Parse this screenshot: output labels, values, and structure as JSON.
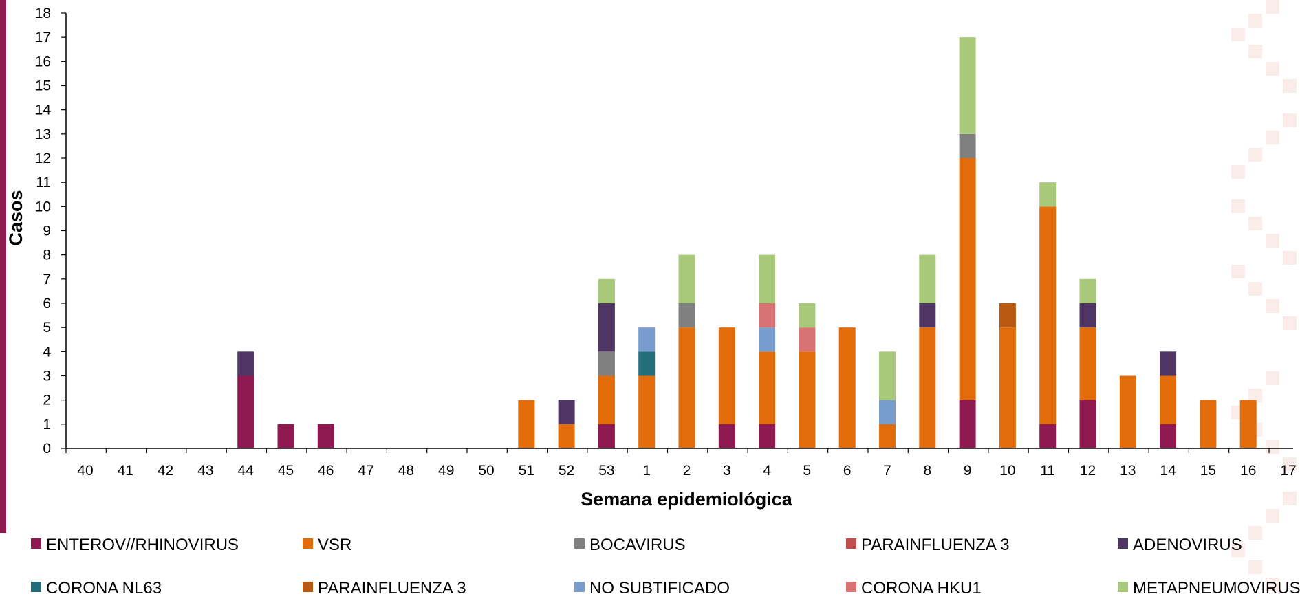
{
  "chart_data": {
    "type": "bar",
    "stacked": true,
    "xlabel": "Semana epidemiológica",
    "ylabel": "Casos",
    "ylim": [
      0,
      18
    ],
    "yticks": [
      0,
      1,
      2,
      3,
      4,
      5,
      6,
      7,
      8,
      9,
      10,
      11,
      12,
      13,
      14,
      15,
      16,
      17,
      18
    ],
    "grid": false,
    "legend_position": "bottom",
    "categories": [
      "40",
      "41",
      "42",
      "43",
      "44",
      "45",
      "46",
      "47",
      "48",
      "49",
      "50",
      "51",
      "52",
      "53",
      "1",
      "2",
      "3",
      "4",
      "5",
      "6",
      "7",
      "8",
      "9",
      "10",
      "11",
      "12",
      "13",
      "14",
      "15",
      "16",
      "17"
    ],
    "series": [
      {
        "name": "ENTEROV//RHINOVIRUS",
        "color": "#8f1a52",
        "values": [
          0,
          0,
          0,
          0,
          3,
          1,
          1,
          0,
          0,
          0,
          0,
          0,
          0,
          1,
          0,
          0,
          1,
          1,
          0,
          0,
          0,
          0,
          2,
          0,
          1,
          2,
          0,
          1,
          0,
          0,
          0
        ]
      },
      {
        "name": "VSR",
        "color": "#e36c0a",
        "values": [
          0,
          0,
          0,
          0,
          0,
          0,
          0,
          0,
          0,
          0,
          0,
          2,
          1,
          2,
          3,
          5,
          4,
          3,
          4,
          5,
          1,
          5,
          10,
          5,
          9,
          3,
          3,
          2,
          2,
          2,
          0
        ]
      },
      {
        "name": "BOCAVIRUS",
        "color": "#808080",
        "values": [
          0,
          0,
          0,
          0,
          0,
          0,
          0,
          0,
          0,
          0,
          0,
          0,
          0,
          1,
          0,
          1,
          0,
          0,
          0,
          0,
          0,
          0,
          1,
          0,
          0,
          0,
          0,
          0,
          0,
          0,
          0
        ]
      },
      {
        "name": "PARAINFLUENZA 3",
        "color": "#c0504d",
        "values": [
          0,
          0,
          0,
          0,
          0,
          0,
          0,
          0,
          0,
          0,
          0,
          0,
          0,
          0,
          0,
          0,
          0,
          0,
          0,
          0,
          0,
          0,
          0,
          0,
          0,
          0,
          0,
          0,
          0,
          0,
          0
        ]
      },
      {
        "name": "ADENOVIRUS",
        "color": "#4f3563",
        "values": [
          0,
          0,
          0,
          0,
          1,
          0,
          0,
          0,
          0,
          0,
          0,
          0,
          1,
          2,
          0,
          0,
          0,
          0,
          0,
          0,
          0,
          1,
          0,
          0,
          0,
          1,
          0,
          1,
          0,
          0,
          0
        ]
      },
      {
        "name": "CORONA NL63",
        "color": "#246d7a",
        "values": [
          0,
          0,
          0,
          0,
          0,
          0,
          0,
          0,
          0,
          0,
          0,
          0,
          0,
          0,
          1,
          0,
          0,
          0,
          0,
          0,
          0,
          0,
          0,
          0,
          0,
          0,
          0,
          0,
          0,
          0,
          0
        ]
      },
      {
        "name": "PARAINFLUENZA 3",
        "color": "#b95a12",
        "values": [
          0,
          0,
          0,
          0,
          0,
          0,
          0,
          0,
          0,
          0,
          0,
          0,
          0,
          0,
          0,
          0,
          0,
          0,
          0,
          0,
          0,
          0,
          0,
          1,
          0,
          0,
          0,
          0,
          0,
          0,
          0
        ]
      },
      {
        "name": "NO SUBTIFICADO",
        "color": "#779ccd",
        "values": [
          0,
          0,
          0,
          0,
          0,
          0,
          0,
          0,
          0,
          0,
          0,
          0,
          0,
          0,
          1,
          0,
          0,
          1,
          0,
          0,
          1,
          0,
          0,
          0,
          0,
          0,
          0,
          0,
          0,
          0,
          0
        ]
      },
      {
        "name": "CORONA HKU1",
        "color": "#d97373",
        "values": [
          0,
          0,
          0,
          0,
          0,
          0,
          0,
          0,
          0,
          0,
          0,
          0,
          0,
          0,
          0,
          0,
          0,
          1,
          1,
          0,
          0,
          0,
          0,
          0,
          0,
          0,
          0,
          0,
          0,
          0,
          0
        ]
      },
      {
        "name": "METAPNEUMOVIRUS",
        "color": "#a9c97a",
        "values": [
          0,
          0,
          0,
          0,
          0,
          0,
          0,
          0,
          0,
          0,
          0,
          0,
          0,
          1,
          0,
          2,
          0,
          2,
          1,
          0,
          2,
          2,
          4,
          0,
          1,
          1,
          0,
          0,
          0,
          0,
          0
        ]
      }
    ]
  }
}
